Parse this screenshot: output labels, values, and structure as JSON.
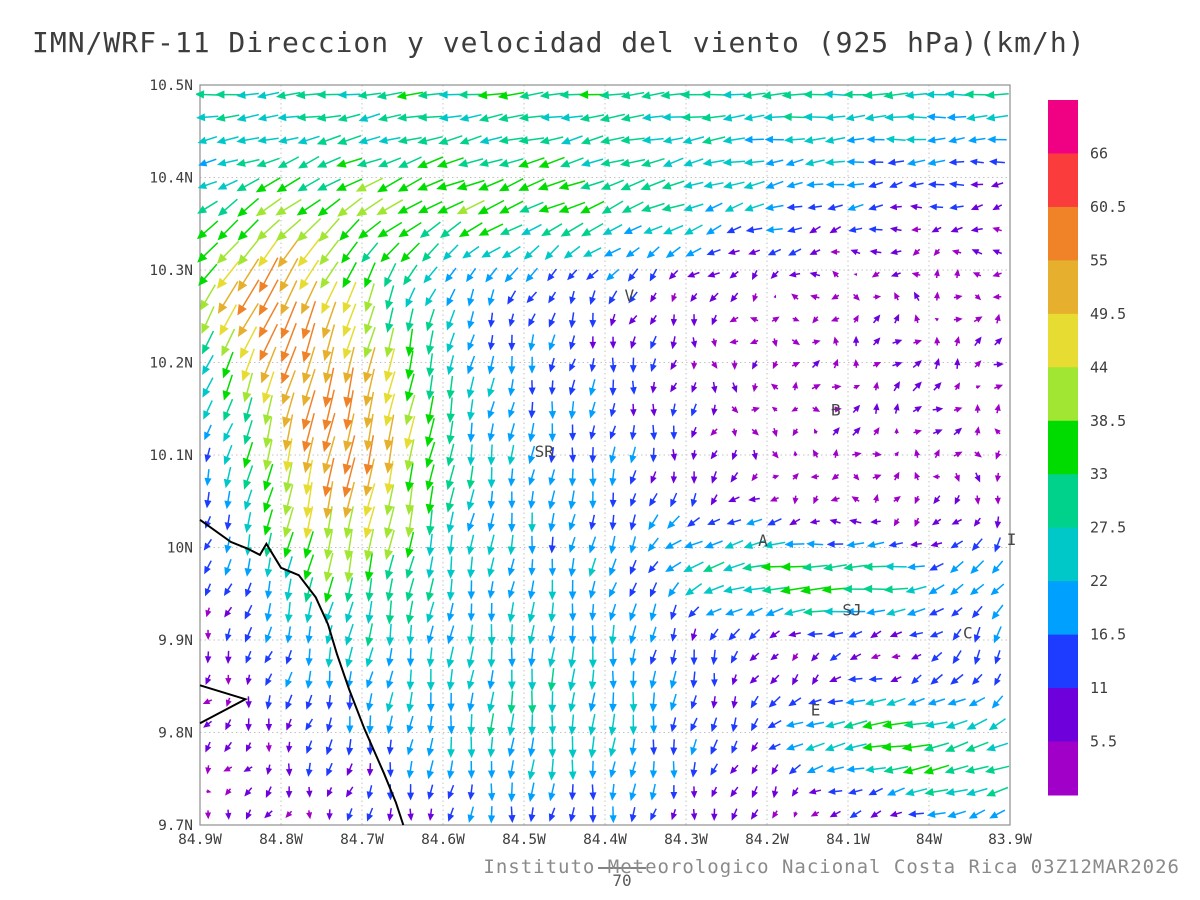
{
  "title": "IMN/WRF-11 Direccion y velocidad del viento (925 hPa)(km/h)",
  "footer": "Instituto Meteorologico Nacional Costa Rica 03Z12MAR2026",
  "reference_vector": {
    "label": "70"
  },
  "chart_data": {
    "type": "vector-field",
    "title": "IMN/WRF-11 Direccion y velocidad del viento (925 hPa)(km/h)",
    "pressure_level": "925 hPa",
    "units": "km/h",
    "x_axis": {
      "range": [
        -84.9,
        -83.9
      ],
      "ticks": [
        {
          "label": "84.9W",
          "value": -84.9
        },
        {
          "label": "84.8W",
          "value": -84.8
        },
        {
          "label": "84.7W",
          "value": -84.7
        },
        {
          "label": "84.6W",
          "value": -84.6
        },
        {
          "label": "84.5W",
          "value": -84.5
        },
        {
          "label": "84.4W",
          "value": -84.4
        },
        {
          "label": "84.3W",
          "value": -84.3
        },
        {
          "label": "84.2W",
          "value": -84.2
        },
        {
          "label": "84.1W",
          "value": -84.1
        },
        {
          "label": "84W",
          "value": -84.0
        },
        {
          "label": "83.9W",
          "value": -83.9
        }
      ]
    },
    "y_axis": {
      "range": [
        9.7,
        10.5
      ],
      "ticks": [
        {
          "label": "10.5N",
          "value": 10.5
        },
        {
          "label": "10.4N",
          "value": 10.4
        },
        {
          "label": "10.3N",
          "value": 10.3
        },
        {
          "label": "10.2N",
          "value": 10.2
        },
        {
          "label": "10.1N",
          "value": 10.1
        },
        {
          "label": "10N",
          "value": 10.0
        },
        {
          "label": "9.9N",
          "value": 9.9
        },
        {
          "label": "9.8N",
          "value": 9.8
        },
        {
          "label": "9.7N",
          "value": 9.7
        }
      ]
    },
    "grid": {
      "style": "dotted",
      "color": "#c3c3c3"
    },
    "frame_color": "#8f8f8f",
    "colorbar": {
      "levels": [
        5.5,
        11,
        16.5,
        22,
        27.5,
        33,
        38.5,
        44,
        49.5,
        55,
        60.5,
        66
      ],
      "colors": [
        "#a000c8",
        "#6e00dc",
        "#1e3cff",
        "#00a0ff",
        "#00c8c8",
        "#00d28c",
        "#00dc00",
        "#a0e632",
        "#e6dc32",
        "#e6af2d",
        "#f08228",
        "#fa3c3c",
        "#f00082"
      ]
    },
    "stations": [
      {
        "label": "V",
        "lon": -84.37,
        "lat": 10.272
      },
      {
        "label": "B",
        "lon": -84.115,
        "lat": 10.148
      },
      {
        "label": "SR",
        "lon": -84.475,
        "lat": 10.103
      },
      {
        "label": "A",
        "lon": -84.205,
        "lat": 10.007
      },
      {
        "label": "SJ",
        "lon": -84.095,
        "lat": 9.932
      },
      {
        "label": "C",
        "lon": -83.952,
        "lat": 9.907
      },
      {
        "label": "E",
        "lon": -84.14,
        "lat": 9.824
      },
      {
        "label": "I",
        "lon": -83.898,
        "lat": 10.008
      }
    ],
    "coastline": [
      [
        -84.9,
        10.03
      ],
      [
        -84.862,
        10.006
      ],
      [
        -84.842,
        9.999
      ],
      [
        -84.826,
        9.992
      ],
      [
        -84.818,
        10.004
      ],
      [
        -84.8,
        9.978
      ],
      [
        -84.778,
        9.97
      ],
      [
        -84.757,
        9.946
      ],
      [
        -84.742,
        9.917
      ],
      [
        -84.731,
        9.885
      ],
      [
        -84.716,
        9.847
      ],
      [
        -84.697,
        9.804
      ],
      [
        -84.673,
        9.756
      ],
      [
        -84.658,
        9.724
      ],
      [
        -84.649,
        9.7
      ]
    ],
    "coastline_peninsula": [
      [
        -84.9,
        9.851
      ],
      [
        -84.844,
        9.836
      ],
      [
        -84.9,
        9.81
      ]
    ],
    "wind_field": {
      "lon_start": -84.89,
      "lon_step": 0.025,
      "n_lon": 40,
      "lat_start": 9.712,
      "lat_step": 0.0243,
      "n_lat": 33,
      "features": [
        {
          "name": "north-easterly-band",
          "u": -34,
          "v": 0,
          "center": [
            -84.4,
            10.56
          ],
          "sigma": [
            1.5,
            0.15
          ]
        },
        {
          "name": "upper-westward-jet",
          "u": -24,
          "v": -8,
          "center": [
            -84.55,
            10.37
          ],
          "sigma": [
            0.38,
            0.07
          ]
        },
        {
          "name": "northwest-south-jet",
          "u": -10,
          "v": -52,
          "center": [
            -84.73,
            10.12
          ],
          "sigma": [
            0.14,
            0.2
          ]
        },
        {
          "name": "northwest-jet-ext",
          "u": -20,
          "v": -30,
          "center": [
            -84.84,
            10.27
          ],
          "sigma": [
            0.1,
            0.09
          ]
        },
        {
          "name": "center-southward",
          "u": 0,
          "v": -16,
          "center": [
            -84.45,
            10.05
          ],
          "sigma": [
            0.2,
            0.3
          ]
        },
        {
          "name": "south-center-flow",
          "u": 0,
          "v": -16,
          "center": [
            -84.5,
            9.8
          ],
          "sigma": [
            0.28,
            0.13
          ]
        },
        {
          "name": "sanjose-westerly-jet",
          "u": -33,
          "v": 0,
          "center": [
            -84.12,
            9.96
          ],
          "sigma": [
            0.15,
            0.05
          ]
        },
        {
          "name": "alajuela-westerly",
          "u": -14,
          "v": 0,
          "center": [
            -84.26,
            10.0
          ],
          "sigma": [
            0.1,
            0.05
          ]
        },
        {
          "name": "south-east-westerly",
          "u": -30,
          "v": -2,
          "center": [
            -84.05,
            9.8
          ],
          "sigma": [
            0.13,
            0.05
          ]
        },
        {
          "name": "bottom-right-westerly",
          "u": -22,
          "v": -4,
          "center": [
            -83.94,
            9.74
          ],
          "sigma": [
            0.13,
            0.05
          ]
        },
        {
          "name": "east-weak-northeast",
          "u": 6,
          "v": 6,
          "center": [
            -84.0,
            10.17
          ],
          "sigma": [
            0.22,
            0.13
          ]
        },
        {
          "name": "right-edge-southward",
          "u": -4,
          "v": -14,
          "center": [
            -83.91,
            9.93
          ],
          "sigma": [
            0.09,
            0.16
          ]
        },
        {
          "name": "background",
          "u": -2,
          "v": -1,
          "center": [
            -84.4,
            10.1
          ],
          "sigma": [
            9.0,
            9.0
          ]
        }
      ],
      "noise": {
        "amp": 3.0,
        "fu": [
          53,
          37
        ],
        "fv": [
          41,
          67
        ]
      }
    }
  }
}
